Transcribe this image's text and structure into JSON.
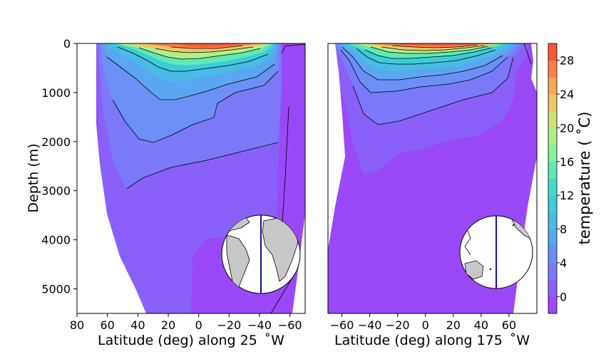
{
  "chart_data": [
    {
      "type": "heatmap",
      "xlabel": "Latitude (deg) along 25  ˚W",
      "ylabel": "Depth (m)",
      "xlim": [
        80,
        -70
      ],
      "ylim": [
        0,
        5500
      ],
      "x_reversed": true,
      "y_reversed": true,
      "xticks": [
        80,
        60,
        40,
        20,
        0,
        -20,
        -40,
        -60
      ],
      "xtick_labels": [
        "80",
        "60",
        "40",
        "20",
        "0",
        "−20",
        "−40",
        "−60"
      ],
      "yticks": [
        0,
        1000,
        2000,
        3000,
        4000,
        5000
      ],
      "ytick_labels": [
        "0",
        "1000",
        "2000",
        "3000",
        "4000",
        "5000"
      ],
      "inset": "globe-map-atlantic-section"
    },
    {
      "type": "heatmap",
      "xlabel": "Latitude (deg) along 175  ˚W",
      "ylabel": "",
      "xlim": [
        -70,
        80
      ],
      "ylim": [
        0,
        5500
      ],
      "xticks": [
        -60,
        -40,
        -20,
        0,
        20,
        40,
        60
      ],
      "xtick_labels": [
        "−60",
        "−40",
        "−20",
        "0",
        "20",
        "40",
        "60"
      ],
      "inset": "globe-map-pacific-section"
    }
  ],
  "colorbar": {
    "label": "temperature ( ˚C)",
    "range": [
      -2,
      30
    ],
    "levels": [
      -2,
      0,
      2,
      4,
      6,
      8,
      10,
      12,
      14,
      16,
      18,
      20,
      22,
      24,
      26,
      28,
      30
    ],
    "ticks": [
      0,
      4,
      8,
      12,
      16,
      20,
      24,
      28
    ],
    "tick_labels": [
      "0",
      "4",
      "8",
      "12",
      "16",
      "20",
      "24",
      "28"
    ],
    "colors": [
      "#9b48f8",
      "#8a61f8",
      "#7b79f8",
      "#6a90f6",
      "#5aa6f0",
      "#49bbe6",
      "#3ccdd9",
      "#42dcc8",
      "#60e9b4",
      "#86f29e",
      "#aef088",
      "#d0e176",
      "#eec766",
      "#fca657",
      "#fe8048",
      "#f8573a"
    ]
  },
  "colors": {
    "deep": "#9b48f8",
    "mid": "#7b79f8",
    "land": "#c8c8c8",
    "section_line": "#1010b0"
  }
}
